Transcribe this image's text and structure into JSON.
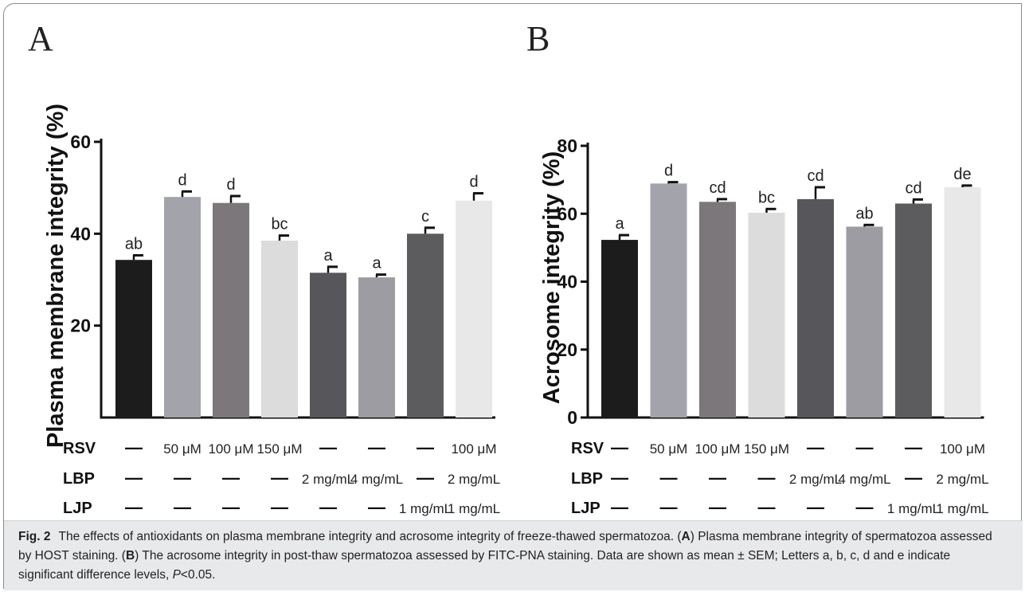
{
  "panel_a_letter": "A",
  "panel_b_letter": "B",
  "row_labels": [
    "RSV",
    "LBP",
    "LJP"
  ],
  "dash": "—",
  "chart_data": [
    {
      "type": "bar",
      "panel": "A",
      "ylabel": "Plasma membrane integrity (%)",
      "ylim": [
        0,
        60
      ],
      "yticks": [
        20,
        40,
        60
      ],
      "values": [
        34.3,
        48.0,
        46.7,
        38.5,
        31.5,
        30.5,
        40.0,
        47.2
      ],
      "errors": [
        1.0,
        1.2,
        1.5,
        1.1,
        1.3,
        0.6,
        1.3,
        1.6
      ],
      "sig_letters": [
        "ab",
        "d",
        "d",
        "bc",
        "a",
        "a",
        "c",
        "d"
      ],
      "colors": [
        "#1c1c1c",
        "#a3a3ab",
        "#7c777b",
        "#dcdcdc",
        "#57575b",
        "#9d9ca2",
        "#5c5c5f",
        "#e8e8e8"
      ],
      "treatments": {
        "RSV": [
          "—",
          "50 μM",
          "100 μM",
          "150 μM",
          "—",
          "—",
          "—",
          "100 μM"
        ],
        "LBP": [
          "—",
          "—",
          "—",
          "—",
          "2 mg/mL",
          "4 mg/mL",
          "—",
          "2 mg/mL"
        ],
        "LJP": [
          "—",
          "—",
          "—",
          "—",
          "—",
          "—",
          "1 mg/mL",
          "1 mg/mL"
        ]
      }
    },
    {
      "type": "bar",
      "panel": "B",
      "ylabel": "Acrosome integrity (%)",
      "ylim": [
        0,
        80
      ],
      "yticks": [
        0,
        20,
        40,
        60,
        80
      ],
      "values": [
        52.3,
        68.9,
        63.5,
        60.3,
        64.3,
        56.2,
        63.0,
        67.8
      ],
      "errors": [
        1.4,
        0.4,
        0.8,
        1.1,
        3.5,
        0.5,
        1.2,
        0.5
      ],
      "sig_letters": [
        "a",
        "d",
        "cd",
        "bc",
        "cd",
        "ab",
        "cd",
        "de"
      ],
      "colors": [
        "#1c1c1c",
        "#a3a3ab",
        "#7c777b",
        "#dcdcdc",
        "#57575b",
        "#9d9ca2",
        "#5c5c5f",
        "#e8e8e8"
      ],
      "treatments": {
        "RSV": [
          "—",
          "50 μM",
          "100 μM",
          "150 μM",
          "—",
          "—",
          "—",
          "100 μM"
        ],
        "LBP": [
          "—",
          "—",
          "—",
          "—",
          "2 mg/mL",
          "4 mg/mL",
          "—",
          "2 mg/mL"
        ],
        "LJP": [
          "—",
          "—",
          "—",
          "—",
          "—",
          "—",
          "1 mg/mL",
          "1 mg/mL"
        ]
      }
    }
  ],
  "caption": {
    "label": "Fig. 2",
    "p1": "The effects of antioxidants on plasma membrane integrity and acrosome integrity of freeze-thawed spermatozoa. (",
    "a": "A",
    "p2": ") Plasma membrane integrity of spermatozoa assessed by HOST staining. (",
    "b": "B",
    "p3": ") The acrosome integrity in post-thaw spermatozoa assessed by FITC-PNA staining. Data are shown as mean ± SEM; Letters a, b, c, d and e indicate significant difference levels, ",
    "p": "P",
    "p4": "<0.05."
  }
}
